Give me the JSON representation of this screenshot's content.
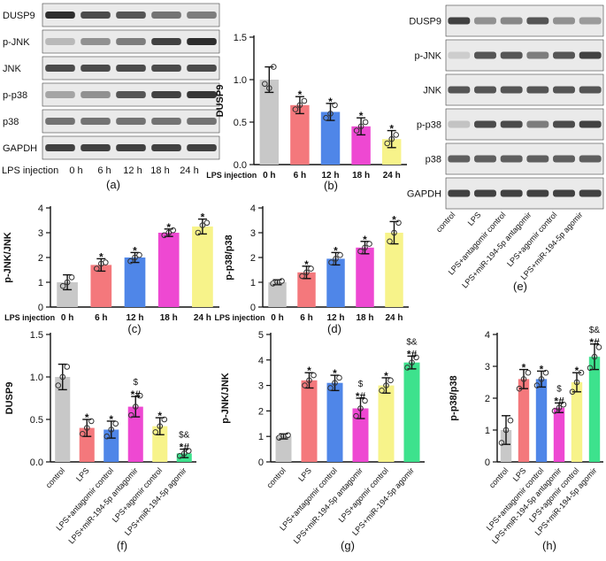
{
  "colors": [
    "#c8c8c8",
    "#f4787c",
    "#4f86e8",
    "#ee48d2",
    "#f7f38a",
    "#3de28d"
  ],
  "blot_a": {
    "labels": [
      "DUSP9",
      "p-JNK",
      "JNK",
      "p-p38",
      "p38",
      "GAPDH"
    ],
    "lps_label": "LPS injection",
    "lanes": [
      "0 h",
      "6 h",
      "12 h",
      "18 h",
      "24 h"
    ],
    "panel": "(a)"
  },
  "blot_e": {
    "labels": [
      "DUSP9",
      "p-JNK",
      "JNK",
      "p-p38",
      "p38",
      "GAPDH"
    ],
    "lanes": [
      "control",
      "LPS",
      "LPS+antagomir control",
      "LPS+miR-194-5p antagomir",
      "LPS+agomir control",
      "LPS+miR-194-5p agomir"
    ],
    "panel": "(e)"
  },
  "chart_data": [
    {
      "type": "bar",
      "panel": "(b)",
      "ylabel": "DUSP9",
      "xprefix": "LPS injection",
      "categories": [
        "0 h",
        "6 h",
        "12 h",
        "18 h",
        "24 h"
      ],
      "values": [
        1.0,
        0.7,
        0.62,
        0.45,
        0.3
      ],
      "errors": [
        0.15,
        0.1,
        0.1,
        0.1,
        0.1
      ],
      "points": [
        [
          0.95,
          1.15,
          0.9
        ],
        [
          0.65,
          0.75,
          0.7
        ],
        [
          0.55,
          0.7,
          0.6
        ],
        [
          0.4,
          0.5,
          0.45
        ],
        [
          0.25,
          0.35,
          0.3
        ]
      ],
      "ylim": [
        0,
        1.5
      ],
      "yticks": [
        "0.0",
        "0.5",
        "1.0",
        "1.5"
      ],
      "annotations": [
        "",
        "*",
        "*",
        "*",
        "*"
      ]
    },
    {
      "type": "bar",
      "panel": "(c)",
      "ylabel": "p-JNK/JNK",
      "xprefix": "LPS injection",
      "categories": [
        "0 h",
        "6 h",
        "12 h",
        "18 h",
        "24 h"
      ],
      "values": [
        1.0,
        1.7,
        2.0,
        3.0,
        3.25
      ],
      "errors": [
        0.3,
        0.25,
        0.2,
        0.15,
        0.3
      ],
      "points": [
        [
          0.85,
          1.2,
          1.0
        ],
        [
          1.55,
          1.8,
          1.75
        ],
        [
          1.85,
          2.1,
          2.0
        ],
        [
          2.9,
          3.1,
          3.0
        ],
        [
          3.0,
          3.4,
          3.3
        ]
      ],
      "ylim": [
        0,
        4
      ],
      "yticks": [
        "0",
        "1",
        "2",
        "3",
        "4"
      ],
      "annotations": [
        "",
        "*",
        "*",
        "*",
        "*"
      ]
    },
    {
      "type": "bar",
      "panel": "(d)",
      "ylabel": "p-p38/p38",
      "xprefix": "LPS injection",
      "categories": [
        "0 h",
        "6 h",
        "12 h",
        "18 h",
        "24 h"
      ],
      "values": [
        1.0,
        1.4,
        1.95,
        2.4,
        3.0
      ],
      "errors": [
        0.1,
        0.25,
        0.25,
        0.25,
        0.45
      ],
      "points": [
        [
          0.95,
          1.05,
          1.0
        ],
        [
          1.25,
          1.55,
          1.4
        ],
        [
          1.8,
          2.1,
          1.95
        ],
        [
          2.25,
          2.55,
          2.4
        ],
        [
          2.65,
          3.4,
          3.0
        ]
      ],
      "ylim": [
        0,
        4
      ],
      "yticks": [
        "0",
        "1",
        "2",
        "3",
        "4"
      ],
      "annotations": [
        "",
        "*",
        "*",
        "*",
        "*"
      ]
    },
    {
      "type": "bar",
      "panel": "(f)",
      "ylabel": "DUSP9",
      "categories": [
        "control",
        "LPS",
        "LPS+antagomir control",
        "LPS+miR-194-5p antagomir",
        "LPS+agomir control",
        "LPS+miR-194-5p agomir"
      ],
      "values": [
        1.0,
        0.4,
        0.38,
        0.65,
        0.42,
        0.1
      ],
      "errors": [
        0.15,
        0.1,
        0.1,
        0.12,
        0.1,
        0.05
      ],
      "points": [
        [
          0.9,
          1.12,
          1.0
        ],
        [
          0.33,
          0.48,
          0.4
        ],
        [
          0.3,
          0.45,
          0.38
        ],
        [
          0.55,
          0.78,
          0.65
        ],
        [
          0.35,
          0.5,
          0.42
        ],
        [
          0.07,
          0.13,
          0.1
        ]
      ],
      "ylim": [
        0,
        1.5
      ],
      "yticks": [
        "0.0",
        "0.5",
        "1.0",
        "1.5"
      ],
      "annotations": [
        "",
        "*",
        "*",
        "$\n*#",
        "*",
        "$&\n*#"
      ]
    },
    {
      "type": "bar",
      "panel": "(g)",
      "ylabel": "p-JNK/JNK",
      "categories": [
        "control",
        "LPS",
        "LPS+antagomir control",
        "LPS+miR-194-5p antagomir",
        "LPS+agomir control",
        "LPS+miR-194-5p agomir"
      ],
      "values": [
        1.0,
        3.2,
        3.1,
        2.1,
        3.0,
        3.9
      ],
      "errors": [
        0.1,
        0.3,
        0.3,
        0.4,
        0.3,
        0.25
      ],
      "points": [
        [
          0.95,
          1.05,
          1.0
        ],
        [
          3.0,
          3.4,
          3.2
        ],
        [
          2.9,
          3.3,
          3.1
        ],
        [
          1.8,
          2.4,
          2.1
        ],
        [
          2.8,
          3.2,
          3.0
        ],
        [
          3.7,
          4.1,
          3.9
        ]
      ],
      "ylim": [
        0,
        5
      ],
      "yticks": [
        "0",
        "1",
        "2",
        "3",
        "4",
        "5"
      ],
      "annotations": [
        "",
        "*",
        "*",
        "$\n*#",
        "*",
        "$&\n*#"
      ]
    },
    {
      "type": "bar",
      "panel": "(h)",
      "ylabel": "p-p38/p38",
      "categories": [
        "control",
        "LPS",
        "LPS+antagomir control",
        "LPS+miR-194-5p antagomir",
        "LPS+agomir control",
        "LPS+miR-194-5p agomir"
      ],
      "values": [
        1.0,
        2.6,
        2.6,
        1.7,
        2.5,
        3.3
      ],
      "errors": [
        0.45,
        0.3,
        0.25,
        0.15,
        0.3,
        0.4
      ],
      "points": [
        [
          0.6,
          1.3,
          1.0
        ],
        [
          2.3,
          2.8,
          2.6
        ],
        [
          2.4,
          2.8,
          2.6
        ],
        [
          1.6,
          1.8,
          1.7
        ],
        [
          2.2,
          2.8,
          2.5
        ],
        [
          2.95,
          3.6,
          3.3
        ]
      ],
      "ylim": [
        0,
        4
      ],
      "yticks": [
        "0",
        "1",
        "2",
        "3",
        "4"
      ],
      "annotations": [
        "",
        "*",
        "*",
        "$\n*#",
        "*",
        "$&\n*#"
      ]
    }
  ]
}
